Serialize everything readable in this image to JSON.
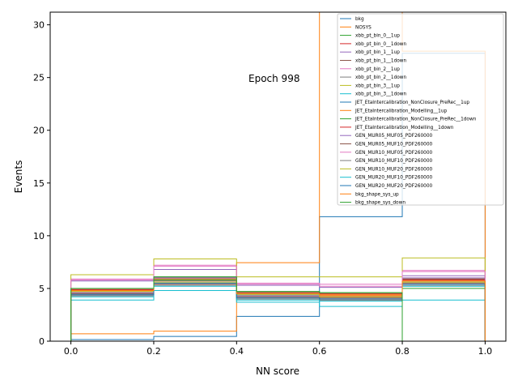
{
  "chart_data": {
    "type": "histogram-step",
    "title": "",
    "annotation": "Epoch 998",
    "xlabel": "NN score",
    "ylabel": "Events",
    "xlim": [
      -0.05,
      1.05
    ],
    "ylim": [
      0,
      31.2
    ],
    "bin_edges": [
      0.0,
      0.2,
      0.4,
      0.6,
      0.8,
      1.0
    ],
    "xticks": [
      0.0,
      0.2,
      0.4,
      0.6,
      0.8,
      1.0
    ],
    "xtick_labels": [
      "0.0",
      "0.2",
      "0.4",
      "0.6",
      "0.8",
      "1.0"
    ],
    "yticks": [
      0,
      5,
      10,
      15,
      20,
      25,
      30
    ],
    "ytick_labels": [
      "0",
      "5",
      "10",
      "15",
      "20",
      "25",
      "30"
    ],
    "grid": false,
    "legend_position": "top-right",
    "series": [
      {
        "name": "bkg",
        "color": "#1f77b4",
        "values": [
          0.15,
          0.45,
          2.35,
          11.8,
          27.3
        ]
      },
      {
        "name": "NOSYS",
        "color": "#ff7f0e",
        "values": [
          0.7,
          0.95,
          7.45,
          34.0,
          27.5
        ]
      },
      {
        "name": "xbb_pt_bin_0__1up",
        "color": "#2ca02c",
        "values": [
          4.9,
          6.1,
          4.7,
          4.5,
          5.9
        ]
      },
      {
        "name": "xbb_pt_bin_0__1down",
        "color": "#d62728",
        "values": [
          4.85,
          6.0,
          4.6,
          4.4,
          5.8
        ]
      },
      {
        "name": "xbb_pt_bin_1__1up",
        "color": "#9467bd",
        "values": [
          5.7,
          6.8,
          5.3,
          5.1,
          6.2
        ]
      },
      {
        "name": "xbb_pt_bin_1__1down",
        "color": "#8c564b",
        "values": [
          4.4,
          5.4,
          4.0,
          3.9,
          5.5
        ]
      },
      {
        "name": "xbb_pt_bin_2__1up",
        "color": "#e377c2",
        "values": [
          5.9,
          7.2,
          5.5,
          5.4,
          6.7
        ]
      },
      {
        "name": "xbb_pt_bin_2__1down",
        "color": "#7f7f7f",
        "values": [
          4.6,
          5.5,
          4.2,
          4.0,
          5.6
        ]
      },
      {
        "name": "xbb_pt_bin_3__1up",
        "color": "#bcbd22",
        "values": [
          6.3,
          7.8,
          6.1,
          6.1,
          7.9
        ]
      },
      {
        "name": "xbb_pt_bin_3__1down",
        "color": "#17becf",
        "values": [
          3.9,
          4.8,
          3.7,
          3.3,
          3.9
        ]
      },
      {
        "name": "JET_EtaIntercalibration_NonClosure_PreRec__1up",
        "color": "#1f77b4",
        "values": [
          4.5,
          5.9,
          4.4,
          4.2,
          5.6
        ]
      },
      {
        "name": "JET_EtaIntercalibration_Modelling__1up",
        "color": "#ff7f0e",
        "values": [
          4.7,
          5.8,
          4.3,
          4.3,
          5.7
        ]
      },
      {
        "name": "JET_EtaIntercalibration_NonClosure_PreRec__1down",
        "color": "#2ca02c",
        "values": [
          4.8,
          5.8,
          4.5,
          4.6,
          5.0
        ]
      },
      {
        "name": "JET_EtaIntercalibration_Modelling__1down",
        "color": "#d62728",
        "values": [
          4.9,
          6.0,
          4.6,
          4.5,
          5.9
        ]
      },
      {
        "name": "GEN_MUR05_MUF05_PDF260000",
        "color": "#9467bd",
        "values": [
          4.6,
          6.0,
          4.3,
          4.2,
          6.0
        ]
      },
      {
        "name": "GEN_MUR05_MUF10_PDF260000",
        "color": "#8c564b",
        "values": [
          4.5,
          5.7,
          4.2,
          4.1,
          5.9
        ]
      },
      {
        "name": "GEN_MUR10_MUF05_PDF260000",
        "color": "#e377c2",
        "values": [
          5.8,
          7.1,
          5.4,
          5.2,
          6.6
        ]
      },
      {
        "name": "GEN_MUR10_MUF10_PDF260000",
        "color": "#7f7f7f",
        "values": [
          4.3,
          5.3,
          4.0,
          3.9,
          5.3
        ]
      },
      {
        "name": "GEN_MUR10_MUF20_PDF260000",
        "color": "#bcbd22",
        "values": [
          4.7,
          5.6,
          4.4,
          4.2,
          5.6
        ]
      },
      {
        "name": "GEN_MUR20_MUF10_PDF260000",
        "color": "#17becf",
        "values": [
          4.2,
          5.2,
          3.9,
          3.8,
          5.2
        ]
      },
      {
        "name": "GEN_MUR20_MUF20_PDF260000",
        "color": "#1f77b4",
        "values": [
          4.4,
          5.5,
          4.1,
          4.0,
          5.4
        ]
      },
      {
        "name": "bkg_shape_sys_up",
        "color": "#ff7f0e",
        "values": [
          4.8,
          5.9,
          4.5,
          4.4,
          5.7
        ]
      },
      {
        "name": "bkg_shape_sys_down",
        "color": "#2ca02c",
        "values": [
          5.0,
          6.1,
          4.7,
          4.6,
          0.0
        ]
      }
    ]
  }
}
